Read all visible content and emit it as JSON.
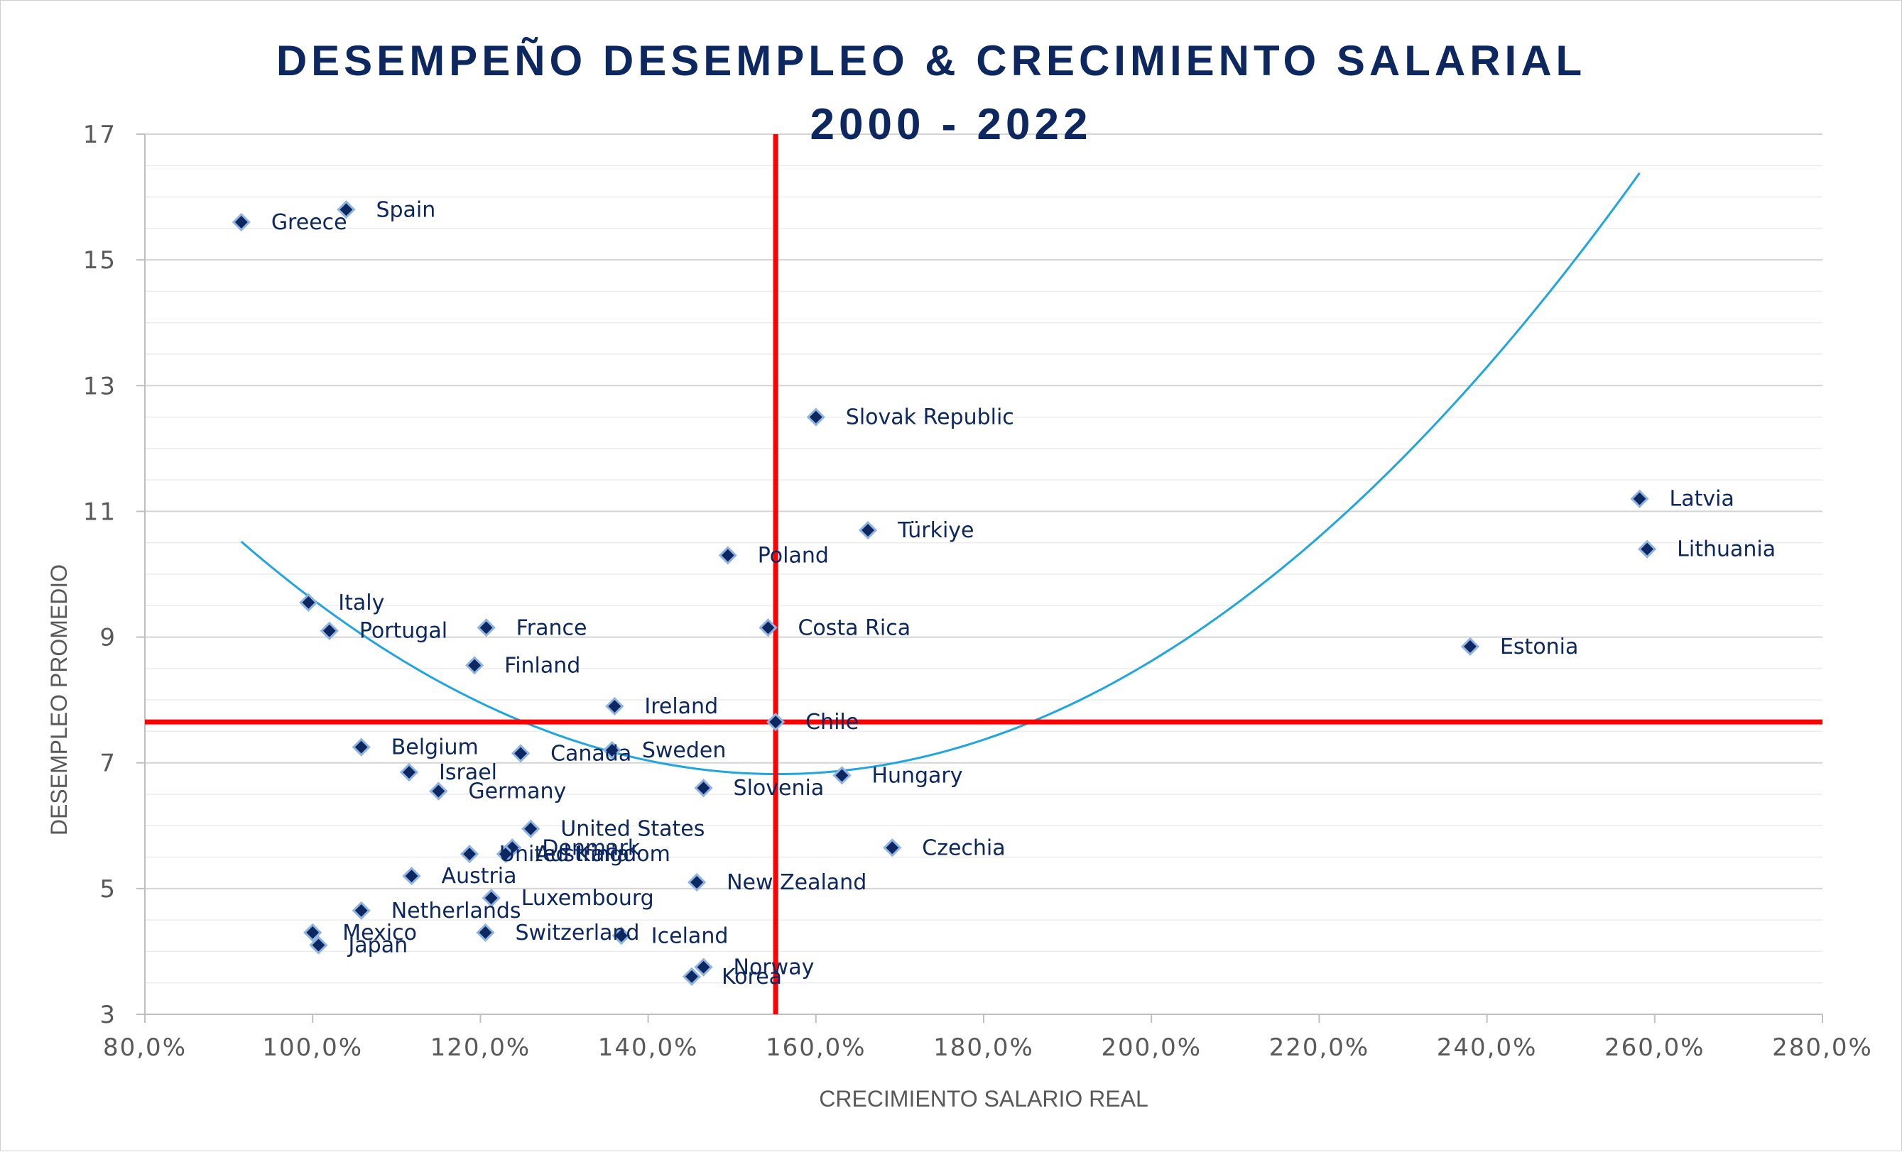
{
  "chart_data": {
    "type": "scatter",
    "title_lines": [
      "DESEMPEÑO DESEMPLEO & CRECIMIENTO SALARIAL",
      "2000 - 2022"
    ],
    "xlabel": "CRECIMIENTO SALARIO REAL",
    "ylabel": "DESEMPLEO PROMEDIO",
    "xlim": [
      80,
      280
    ],
    "ylim": [
      3,
      17
    ],
    "x_ticks": [
      80,
      100,
      120,
      140,
      160,
      180,
      200,
      220,
      240,
      260,
      280
    ],
    "x_tick_labels": [
      "80,0%",
      "100,0%",
      "120,0%",
      "140,0%",
      "160,0%",
      "180,0%",
      "200,0%",
      "220,0%",
      "240,0%",
      "260,0%",
      "280,0%"
    ],
    "y_ticks": [
      3,
      5,
      7,
      9,
      11,
      13,
      15,
      17
    ],
    "y_tick_labels": [
      "3",
      "5",
      "7",
      "9",
      "11",
      "13",
      "15",
      "17"
    ],
    "gridlines": "horizontal minor and major",
    "marker_color": "#0d2760",
    "marker_edge_color": "#8fb4e3",
    "reference_line_color": "#ff0000",
    "reference_lines": {
      "x": 155.2,
      "y": 7.65
    },
    "trendline": {
      "type": "polynomial",
      "color": "#1fa6e0",
      "x_range": [
        91.5,
        258.2
      ],
      "coefficients": [
        28.68,
        -0.2813,
        0.000905
      ]
    },
    "points": [
      {
        "name": "Greece",
        "x": 91.5,
        "y": 15.6
      },
      {
        "name": "Spain",
        "x": 104.0,
        "y": 15.8
      },
      {
        "name": "Slovak Republic",
        "x": 160.0,
        "y": 12.5
      },
      {
        "name": "Latvia",
        "x": 258.2,
        "y": 11.2
      },
      {
        "name": "Türkiye",
        "x": 166.2,
        "y": 10.7
      },
      {
        "name": "Lithuania",
        "x": 259.1,
        "y": 10.4
      },
      {
        "name": "Poland",
        "x": 149.5,
        "y": 10.3
      },
      {
        "name": "Italy",
        "x": 99.5,
        "y": 9.55
      },
      {
        "name": "Portugal",
        "x": 102.0,
        "y": 9.1
      },
      {
        "name": "France",
        "x": 120.7,
        "y": 9.15
      },
      {
        "name": "Costa Rica",
        "x": 154.3,
        "y": 9.15
      },
      {
        "name": "Estonia",
        "x": 238.0,
        "y": 8.85
      },
      {
        "name": "Finland",
        "x": 119.3,
        "y": 8.55
      },
      {
        "name": "Ireland",
        "x": 136.0,
        "y": 7.9
      },
      {
        "name": "Chile",
        "x": 155.2,
        "y": 7.65
      },
      {
        "name": "Belgium",
        "x": 105.8,
        "y": 7.25
      },
      {
        "name": "Canada",
        "x": 124.8,
        "y": 7.15
      },
      {
        "name": "Sweden",
        "x": 135.7,
        "y": 7.2
      },
      {
        "name": "Israel",
        "x": 111.5,
        "y": 6.85
      },
      {
        "name": "Hungary",
        "x": 163.1,
        "y": 6.8
      },
      {
        "name": "Germany",
        "x": 115.0,
        "y": 6.55
      },
      {
        "name": "Slovenia",
        "x": 146.6,
        "y": 6.6
      },
      {
        "name": "United States",
        "x": 126.0,
        "y": 5.95
      },
      {
        "name": "Czechia",
        "x": 169.1,
        "y": 5.65
      },
      {
        "name": "Denmark",
        "x": 123.8,
        "y": 5.65
      },
      {
        "name": "United Kingdom",
        "x": 118.7,
        "y": 5.55
      },
      {
        "name": "Australia",
        "x": 123.0,
        "y": 5.55
      },
      {
        "name": "Austria",
        "x": 111.8,
        "y": 5.2
      },
      {
        "name": "New Zealand",
        "x": 145.8,
        "y": 5.1
      },
      {
        "name": "Luxembourg",
        "x": 121.3,
        "y": 4.85
      },
      {
        "name": "Netherlands",
        "x": 105.8,
        "y": 4.65
      },
      {
        "name": "Mexico",
        "x": 100.0,
        "y": 4.3
      },
      {
        "name": "Switzerland",
        "x": 120.6,
        "y": 4.3
      },
      {
        "name": "Iceland",
        "x": 136.8,
        "y": 4.25
      },
      {
        "name": "Japan",
        "x": 100.7,
        "y": 4.1
      },
      {
        "name": "Norway",
        "x": 146.6,
        "y": 3.75
      },
      {
        "name": "Korea",
        "x": 145.2,
        "y": 3.6
      }
    ]
  }
}
